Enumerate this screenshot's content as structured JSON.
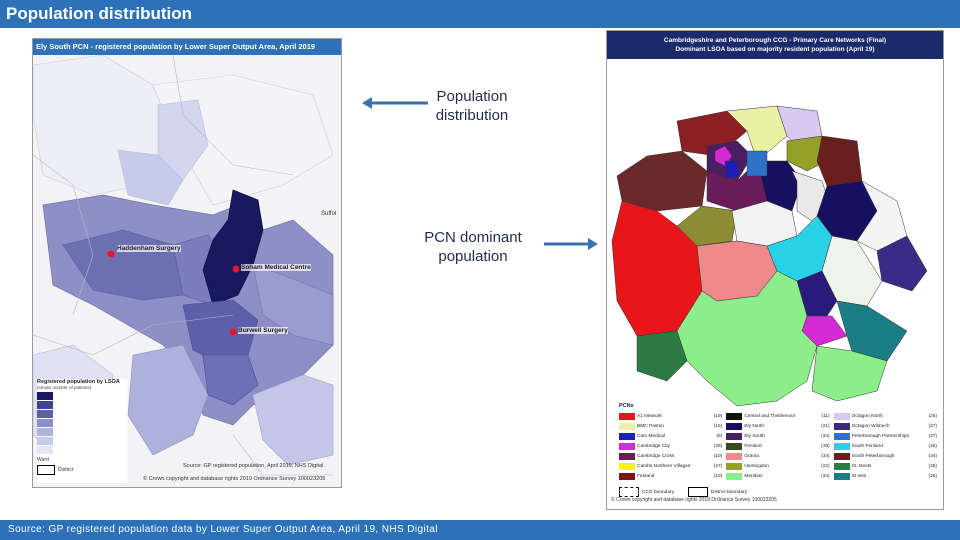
{
  "header": {
    "title": "Population distribution"
  },
  "footer": {
    "source": "Source: GP registered population data by Lower Super Output Area, April 19, NHS Digital"
  },
  "left_map": {
    "title": "Ely South PCN - registered population by Lower Super Output Area, April 2019",
    "places": [
      "Haddenham Surgery",
      "Soham Medical Centre",
      "Burwell Surgery"
    ],
    "edge_label": "Suffol",
    "legend_title": "Registered population by LSOA",
    "legend_sub": "(shows number of patients)",
    "legend_items": [
      "Ward",
      "District"
    ],
    "source_note": "Source: GP registered population, April 2019, NHS Digital",
    "copyright": "© Crown copyright and database rights 2019 Ordnance Survey 100023205"
  },
  "right_map": {
    "title_line1": "Cambridgeshire and Peterborough CCG - Primary Care Networks (Final)",
    "title_line2": "Dominant LSOA based on majority resident population (April 19)",
    "legend_heading": "PCNs",
    "legend_entries": [
      {
        "name": "A1 Network",
        "count": "(19)",
        "color": "#e8151b"
      },
      {
        "name": "BMC Paston",
        "count": "(15)",
        "color": "#e9f1a6"
      },
      {
        "name": "Cam Medical",
        "count": "(9)",
        "color": "#1d1fb8"
      },
      {
        "name": "Cambridge City",
        "count": "(25)",
        "color": "#d62bd4"
      },
      {
        "name": "Cambridge Cross",
        "count": "(10)",
        "color": "#6a1c5a"
      },
      {
        "name": "Cambs Northern Villages",
        "count": "(27)",
        "color": "#f7f21b"
      },
      {
        "name": "Fenland",
        "count": "(19)",
        "color": "#7b1516"
      },
      {
        "name": "Central and Thistlemoor",
        "count": "(11)",
        "color": "#111111"
      },
      {
        "name": "Ely North",
        "count": "(21)",
        "color": "#15115f"
      },
      {
        "name": "Ely South",
        "count": "(34)",
        "color": "#4b1e63"
      },
      {
        "name": "Fenland",
        "count": "(19)",
        "color": "#3a4a1c"
      },
      {
        "name": "Granta",
        "count": "(34)",
        "color": "#f08a8a"
      },
      {
        "name": "Huntingdon",
        "count": "(22)",
        "color": "#94a128"
      },
      {
        "name": "Meridian",
        "count": "(34)",
        "color": "#8bee8b"
      },
      {
        "name": "Octagon North",
        "count": "(26)",
        "color": "#d9c8f2"
      },
      {
        "name": "Octagon Wisbech",
        "count": "(27)",
        "color": "#3a2b86"
      },
      {
        "name": "Peterborough Partnerships",
        "count": "(27)",
        "color": "#2f70c8"
      },
      {
        "name": "South Fenland",
        "count": "(16)",
        "color": "#28d1e5"
      },
      {
        "name": "South Peterborough",
        "count": "(34)",
        "color": "#6a1f1f"
      },
      {
        "name": "St. Neots",
        "count": "(26)",
        "color": "#2e7a45"
      },
      {
        "name": "St Ives",
        "count": "(26)",
        "color": "#1b7d85"
      }
    ],
    "boundary_labels": [
      "CCG boundary",
      "District boundary"
    ],
    "copyright": "© Crown copyright and database rights 2019 Ordnance Survey 100023205"
  },
  "callouts": {
    "distribution": "Population distribution",
    "dominant": "PCN dominant population"
  }
}
